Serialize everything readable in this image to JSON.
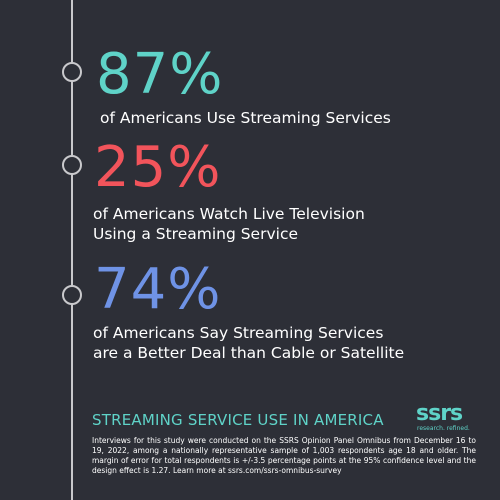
{
  "stats": [
    {
      "value": "87%",
      "color": "#5fd3c8",
      "label_lines": [
        "of Americans Use Streaming Services"
      ]
    },
    {
      "value": "25%",
      "color": "#f2545b",
      "label_lines": [
        "of Americans Watch Live Television",
        "Using a Streaming Service"
      ]
    },
    {
      "value": "74%",
      "color": "#6f93e6",
      "label_lines": [
        "of Americans Say Streaming Services",
        "are a Better Deal than Cable or Satellite"
      ]
    }
  ],
  "footer": {
    "title": "STREAMING SERVICE USE IN AMERICA",
    "note": "Interviews for this study were conducted on the SSRS Opinion Panel Omnibus from December 16 to 19, 2022, among a nationally representative sample of 1,003 respondents age 18 and older. The margin of error for total respondents is +/-3.5 percentage points at the 95% confidence level and the design effect is 1.27. Learn more at ssrs.com/ssrs-omnibus-survey"
  },
  "logo": {
    "word": "ssrs",
    "tagline": "research. refined."
  },
  "colors": {
    "background": "#2d2f37",
    "teal": "#5fd3c8",
    "red": "#f2545b",
    "blue": "#6f93e6",
    "timeline": "#c9c9cc"
  }
}
